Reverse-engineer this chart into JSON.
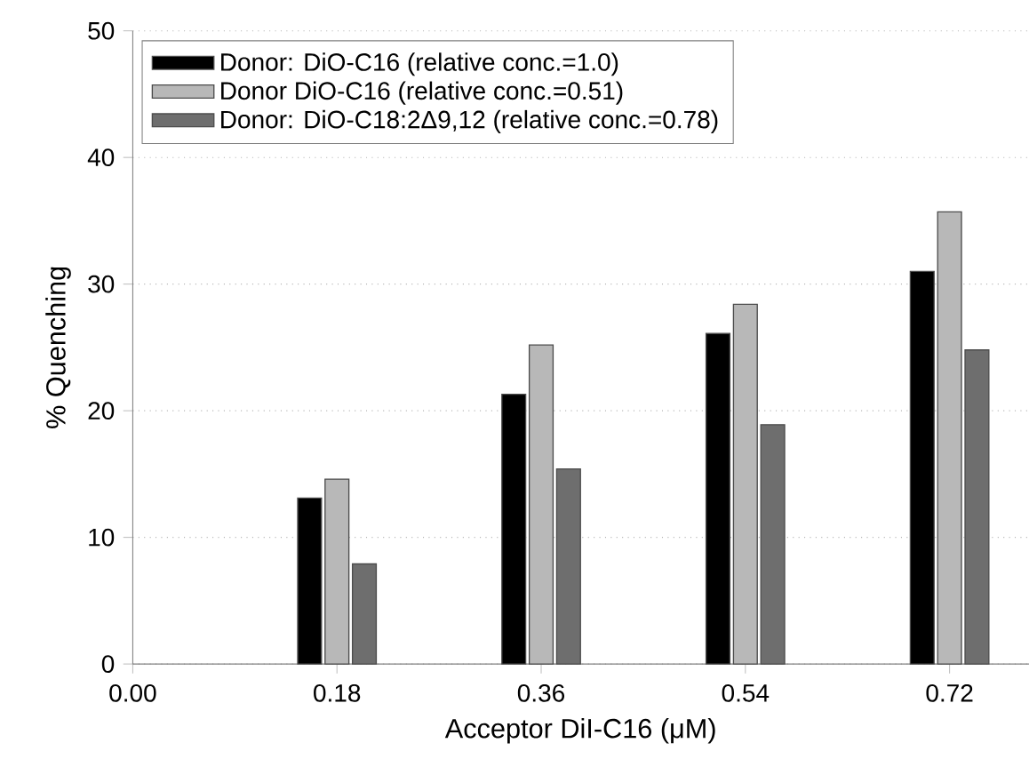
{
  "chart_data": {
    "type": "bar",
    "x": [
      0.18,
      0.36,
      0.54,
      0.72
    ],
    "xlabel": "Acceptor DiI-C16 (μM)",
    "ylabel": "% Quenching",
    "xlim": [
      0,
      0.79
    ],
    "xticks": [
      {
        "value": 0,
        "label": "0.00"
      },
      0.18,
      0.36,
      0.54,
      0.72
    ],
    "ylim": [
      0,
      50
    ],
    "yticks": [
      0,
      10,
      20,
      30,
      40,
      50
    ],
    "grid": "y",
    "legend": "top left",
    "series": [
      {
        "name": "Donor: DiO-C16 (relative conc.=1.0)",
        "color": "#000000",
        "values": [
          13.1,
          21.3,
          26.1,
          31.0
        ]
      },
      {
        "name": "Donor DiO-C16 (relative conc.=0.51)",
        "color": "#b8b8b8",
        "values": [
          14.6,
          25.2,
          28.4,
          35.7
        ]
      },
      {
        "name": "Donor: DiO-C18:2Δ9,12 (relative conc.=0.78)",
        "color": "#6e6e6e",
        "values": [
          7.9,
          15.4,
          18.9,
          24.8
        ]
      }
    ]
  }
}
